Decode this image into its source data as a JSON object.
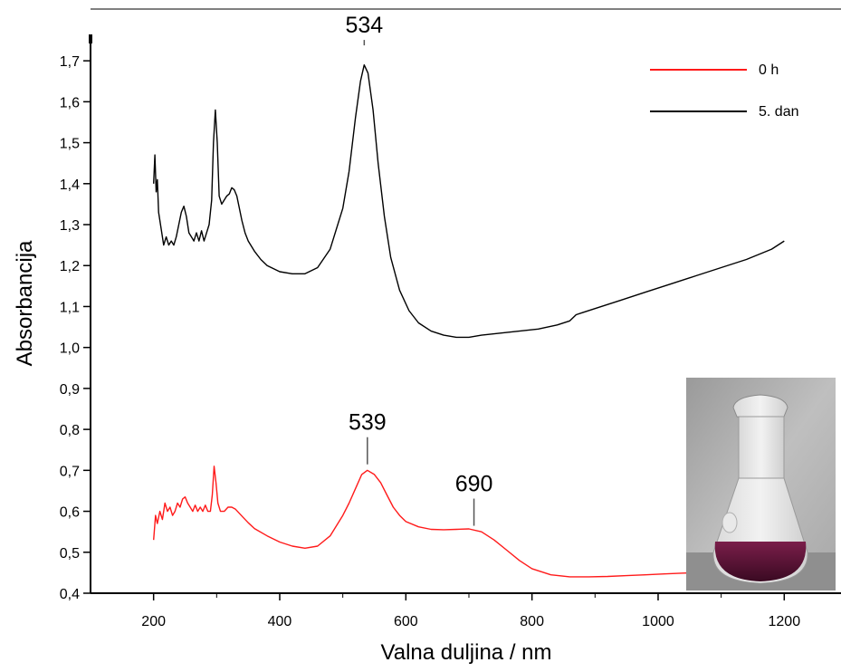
{
  "chart_data": {
    "type": "line",
    "title": "",
    "xlabel": "Valna duljina / nm",
    "ylabel": "Absorbancija",
    "xlim": [
      100,
      1290
    ],
    "ylim": [
      0.4,
      1.76
    ],
    "x_ticks": [
      200,
      400,
      600,
      800,
      1000,
      1200
    ],
    "y_ticks": [
      0.4,
      0.5,
      0.6,
      0.7,
      0.8,
      0.9,
      1.0,
      1.1,
      1.2,
      1.3,
      1.4,
      1.5,
      1.6,
      1.7
    ],
    "x_tick_labels": [
      "200",
      "400",
      "600",
      "800",
      "1000",
      "1200"
    ],
    "y_tick_labels": [
      "0,4",
      "0,5",
      "0,6",
      "0,7",
      "0,8",
      "0,9",
      "1,0",
      "1,1",
      "1,2",
      "1,3",
      "1,4",
      "1,5",
      "1,6",
      "1,7"
    ],
    "grid": false,
    "legend_position": "top-right",
    "series": [
      {
        "name": "0 h",
        "color": "#ff1a1a",
        "x": [
          200,
          203,
          206,
          210,
          214,
          218,
          222,
          226,
          230,
          234,
          238,
          242,
          246,
          250,
          254,
          258,
          262,
          266,
          270,
          274,
          278,
          282,
          286,
          290,
          293,
          296,
          299,
          302,
          306,
          312,
          318,
          324,
          330,
          336,
          342,
          350,
          360,
          380,
          400,
          420,
          440,
          460,
          480,
          500,
          510,
          520,
          530,
          539,
          550,
          560,
          570,
          580,
          590,
          600,
          620,
          640,
          660,
          680,
          700,
          720,
          740,
          760,
          780,
          800,
          830,
          860,
          890,
          920,
          950,
          980,
          1010,
          1040,
          1060
        ],
        "y": [
          0.53,
          0.59,
          0.57,
          0.6,
          0.58,
          0.62,
          0.6,
          0.61,
          0.59,
          0.6,
          0.62,
          0.61,
          0.63,
          0.635,
          0.62,
          0.61,
          0.6,
          0.615,
          0.6,
          0.61,
          0.6,
          0.615,
          0.6,
          0.6,
          0.64,
          0.71,
          0.67,
          0.62,
          0.6,
          0.6,
          0.61,
          0.61,
          0.605,
          0.595,
          0.585,
          0.572,
          0.558,
          0.54,
          0.525,
          0.515,
          0.51,
          0.515,
          0.54,
          0.59,
          0.62,
          0.655,
          0.69,
          0.7,
          0.69,
          0.67,
          0.64,
          0.61,
          0.59,
          0.575,
          0.562,
          0.556,
          0.555,
          0.556,
          0.557,
          0.55,
          0.53,
          0.505,
          0.48,
          0.46,
          0.445,
          0.44,
          0.44,
          0.441,
          0.443,
          0.445,
          0.447,
          0.449,
          0.45
        ]
      },
      {
        "name": "5. dan",
        "color": "#000000",
        "x": [
          200,
          202,
          204,
          206,
          208,
          212,
          216,
          220,
          224,
          228,
          232,
          236,
          240,
          244,
          248,
          252,
          256,
          260,
          264,
          268,
          272,
          276,
          280,
          284,
          288,
          292,
          295,
          298,
          301,
          304,
          308,
          312,
          316,
          320,
          324,
          328,
          332,
          336,
          340,
          345,
          350,
          360,
          370,
          380,
          400,
          420,
          440,
          460,
          480,
          500,
          510,
          520,
          528,
          534,
          540,
          548,
          556,
          566,
          576,
          590,
          605,
          620,
          640,
          660,
          680,
          700,
          720,
          750,
          780,
          810,
          840,
          860,
          870,
          880,
          900,
          940,
          980,
          1020,
          1060,
          1100,
          1140,
          1180,
          1200
        ],
        "y": [
          1.4,
          1.47,
          1.38,
          1.41,
          1.33,
          1.29,
          1.25,
          1.27,
          1.25,
          1.26,
          1.25,
          1.27,
          1.3,
          1.33,
          1.345,
          1.32,
          1.28,
          1.27,
          1.26,
          1.28,
          1.26,
          1.285,
          1.26,
          1.28,
          1.3,
          1.36,
          1.5,
          1.58,
          1.5,
          1.37,
          1.35,
          1.36,
          1.37,
          1.375,
          1.39,
          1.385,
          1.37,
          1.34,
          1.31,
          1.28,
          1.26,
          1.235,
          1.215,
          1.2,
          1.185,
          1.18,
          1.18,
          1.195,
          1.24,
          1.34,
          1.43,
          1.56,
          1.65,
          1.69,
          1.67,
          1.58,
          1.45,
          1.32,
          1.22,
          1.14,
          1.09,
          1.06,
          1.04,
          1.03,
          1.025,
          1.025,
          1.03,
          1.035,
          1.04,
          1.045,
          1.055,
          1.065,
          1.08,
          1.085,
          1.095,
          1.115,
          1.135,
          1.155,
          1.175,
          1.195,
          1.215,
          1.24,
          1.26
        ]
      }
    ],
    "annotations": [
      {
        "text": "534",
        "x": 534,
        "y": 1.72
      },
      {
        "text": "539",
        "x": 539,
        "y": 0.75
      },
      {
        "text": "690",
        "x": 708,
        "y": 0.6
      }
    ]
  }
}
